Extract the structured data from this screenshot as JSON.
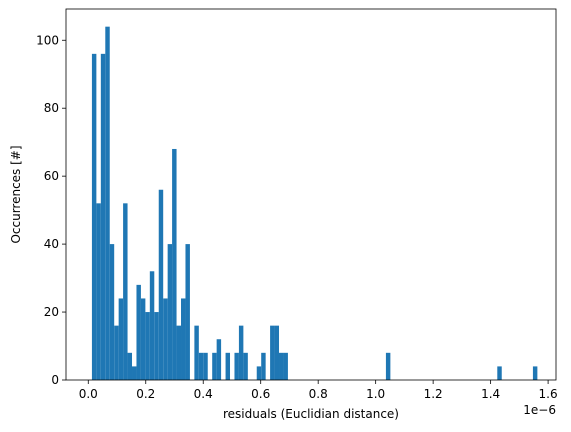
{
  "chart_data": {
    "type": "bar",
    "xlabel": "residuals (Euclidian distance)",
    "ylabel": "Occurrences [#]",
    "x_offset_label": "1e−6",
    "x_tick_scale": 1e-06,
    "xlim": [
      -0.0775,
      1.6275
    ],
    "ylim": [
      0,
      109.2
    ],
    "x_ticks": [
      0.0,
      0.2,
      0.4,
      0.6,
      0.8,
      1.0,
      1.2,
      1.4,
      1.6
    ],
    "x_tick_labels": [
      "0.0",
      "0.2",
      "0.4",
      "0.6",
      "0.8",
      "1.0",
      "1.2",
      "1.4",
      "1.6"
    ],
    "y_ticks": [
      0,
      20,
      40,
      60,
      80,
      100
    ],
    "y_tick_labels": [
      "0",
      "20",
      "40",
      "60",
      "80",
      "100"
    ],
    "bar_color": "#1f77b4",
    "bin_start": 0.0127,
    "bin_width": 0.0155,
    "counts": [
      96,
      52,
      96,
      104,
      40,
      16,
      24,
      52,
      8,
      4,
      28,
      24,
      20,
      32,
      20,
      56,
      24,
      40,
      68,
      16,
      24,
      40,
      0,
      16,
      8,
      8,
      0,
      8,
      12,
      0,
      8,
      0,
      8,
      16,
      8,
      0,
      0,
      4,
      8,
      0,
      16,
      16,
      8,
      8,
      0,
      0,
      0,
      0,
      0,
      0,
      0,
      0,
      0,
      0,
      0,
      0,
      0,
      0,
      0,
      0,
      0,
      0,
      0,
      0,
      0,
      0,
      8,
      0,
      0,
      0,
      0,
      0,
      0,
      0,
      0,
      0,
      0,
      0,
      0,
      0,
      0,
      0,
      0,
      0,
      0,
      0,
      0,
      0,
      0,
      0,
      0,
      4,
      0,
      0,
      0,
      0,
      0,
      0,
      0,
      4
    ]
  }
}
